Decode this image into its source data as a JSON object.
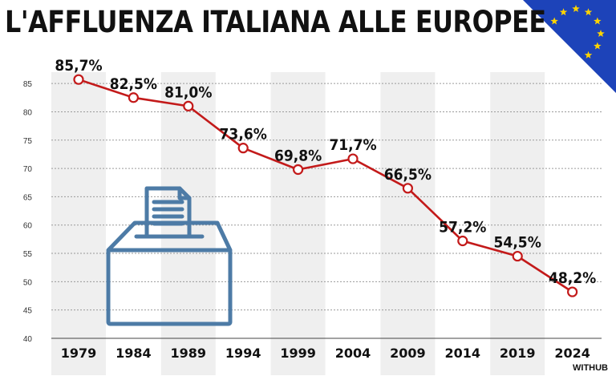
{
  "title": "L'AFFLUENZA ITALIANA ALLE EUROPEE",
  "credit": "WITHUB",
  "colors": {
    "line": "#c31a1a",
    "point_fill": "#ffffff",
    "band": "#efefef",
    "grid": "#9a9a9a",
    "icon": "#4d7ba6",
    "flag_blue": "#1d43b9",
    "flag_star": "#ffd400"
  },
  "icons": [
    "ballot-box-icon",
    "eu-flag-icon"
  ],
  "chart_data": {
    "type": "line",
    "title": "L'AFFLUENZA ITALIANA ALLE EUROPEE",
    "xlabel": "",
    "ylabel": "",
    "categories": [
      "1979",
      "1984",
      "1989",
      "1994",
      "1999",
      "2004",
      "2009",
      "2014",
      "2019",
      "2024"
    ],
    "series": [
      {
        "name": "Affluenza",
        "values": [
          85.7,
          82.5,
          81.0,
          73.6,
          69.8,
          71.7,
          66.5,
          57.2,
          54.5,
          48.2
        ],
        "labels": [
          "85,7%",
          "82,5%",
          "81,0%",
          "73,6%",
          "69,8%",
          "71,7%",
          "66,5%",
          "57,2%",
          "54,5%",
          "48,2%"
        ]
      }
    ],
    "ylim": [
      40,
      87
    ],
    "yticks": [
      40,
      45,
      50,
      55,
      60,
      65,
      70,
      75,
      80,
      85
    ],
    "grid": true
  }
}
